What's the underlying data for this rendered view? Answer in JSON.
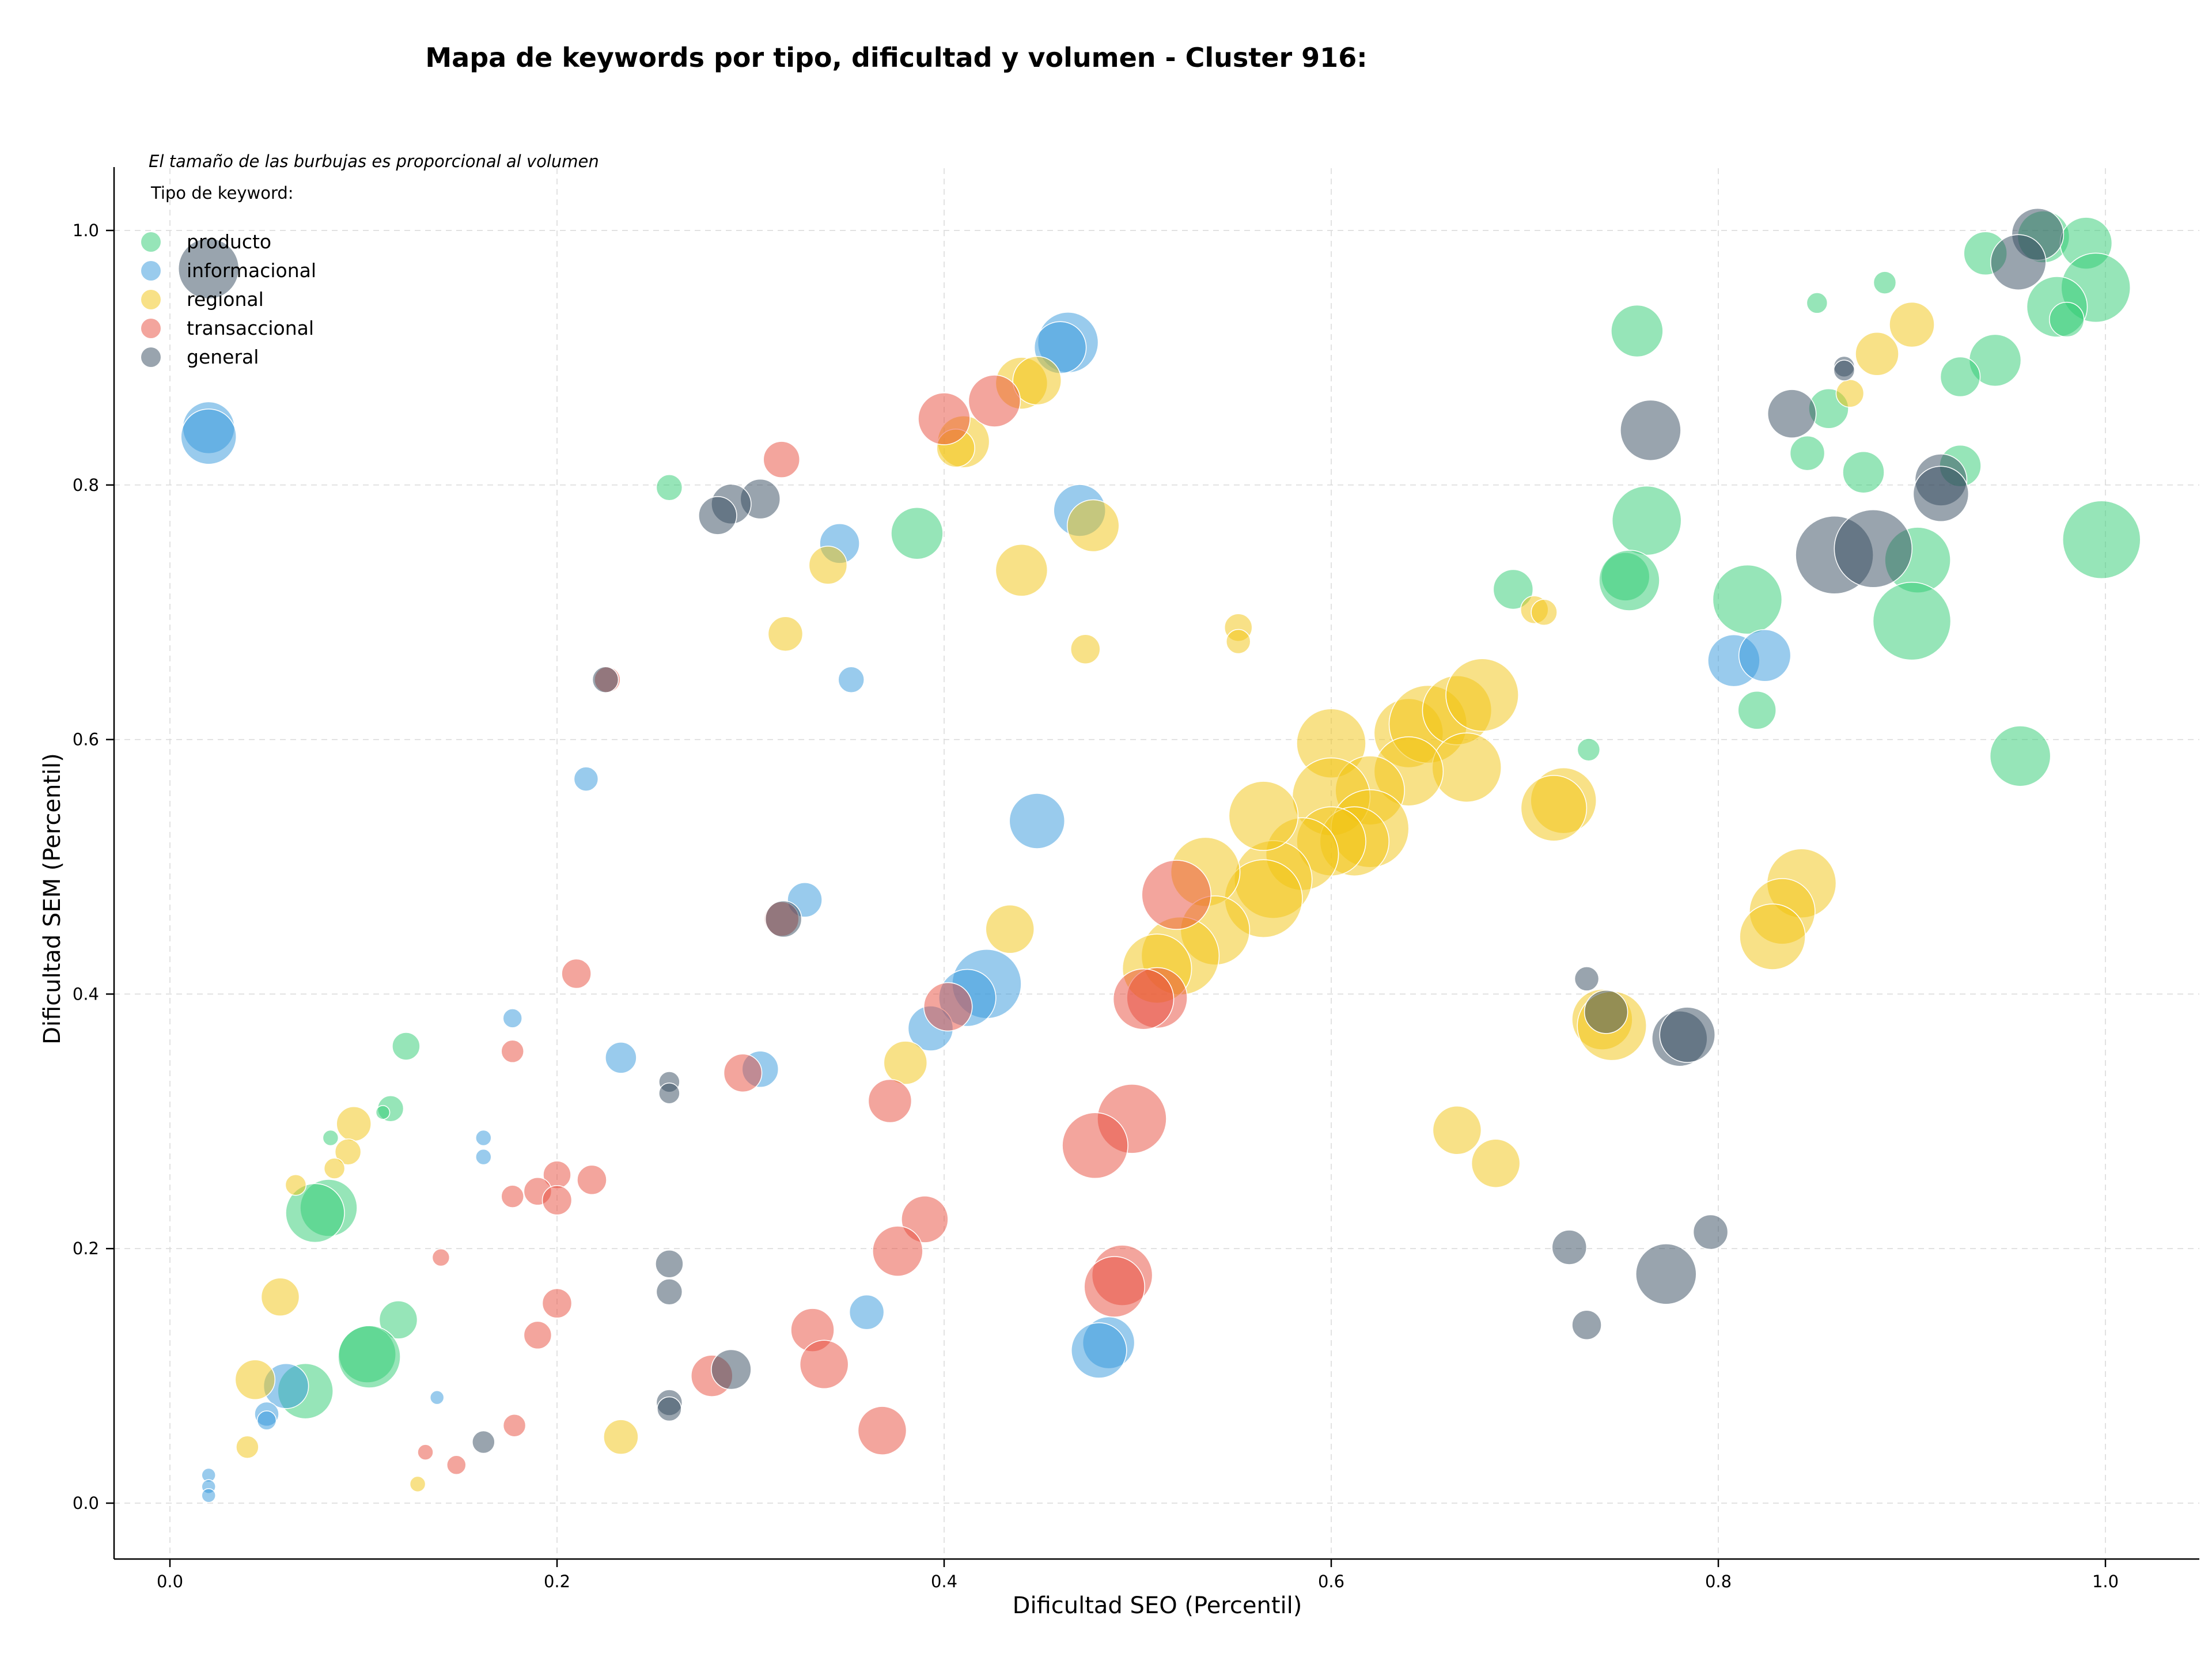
{
  "chart_data": {
    "type": "scatter",
    "title": "Mapa de keywords por tipo, dificultad y volumen - Cluster 916:",
    "xlabel": "Dificultad SEO (Percentil)",
    "ylabel": "Dificultad SEM (Percentil)",
    "xlim": [
      -0.03,
      1.05
    ],
    "ylim": [
      -0.04,
      1.05
    ],
    "xticks": [
      "0.0",
      "0.2",
      "0.4",
      "0.6",
      "0.8",
      "1.0"
    ],
    "yticks": [
      "0.0",
      "0.2",
      "0.4",
      "0.6",
      "0.8",
      "1.0"
    ],
    "grid": true,
    "legend_placement": "top-left",
    "note": "El tamaño de las burbujas es proporcional al volumen",
    "legend_title": "Tipo de keyword:",
    "colors": {
      "producto": "#2ecc71",
      "informacional": "#3498db",
      "regional": "#f1c40f",
      "transaccional": "#e74c3c",
      "general": "#34495e"
    },
    "series": [
      {
        "name": "producto",
        "points": [
          [
            0.258,
            0.798,
            1.5
          ],
          [
            0.386,
            0.762,
            3
          ],
          [
            0.758,
            0.921,
            3
          ],
          [
            0.851,
            0.943,
            1.2
          ],
          [
            0.886,
            0.959,
            1.3
          ],
          [
            0.938,
            0.982,
            2.5
          ],
          [
            0.968,
            0.995,
            3
          ],
          [
            0.99,
            0.99,
            3
          ],
          [
            0.995,
            0.955,
            4
          ],
          [
            0.975,
            0.94,
            3.5
          ],
          [
            0.98,
            0.93,
            2
          ],
          [
            0.943,
            0.898,
            3
          ],
          [
            0.925,
            0.885,
            2.3
          ],
          [
            0.857,
            0.86,
            2.3
          ],
          [
            0.846,
            0.825,
            2
          ],
          [
            0.875,
            0.81,
            2.4
          ],
          [
            0.925,
            0.815,
            2.4
          ],
          [
            0.763,
            0.772,
            4
          ],
          [
            0.903,
            0.741,
            3.8
          ],
          [
            0.752,
            0.728,
            2.8
          ],
          [
            0.754,
            0.725,
            3.5
          ],
          [
            0.694,
            0.718,
            2.3
          ],
          [
            0.815,
            0.71,
            4
          ],
          [
            0.998,
            0.757,
            4.5
          ],
          [
            0.9,
            0.693,
            4.5
          ],
          [
            0.82,
            0.623,
            2.2
          ],
          [
            0.956,
            0.587,
            3.5
          ],
          [
            0.733,
            0.592,
            1.3
          ],
          [
            0.122,
            0.359,
            1.6
          ],
          [
            0.114,
            0.31,
            1.5
          ],
          [
            0.11,
            0.307,
            0.8
          ],
          [
            0.083,
            0.287,
            0.9
          ],
          [
            0.082,
            0.232,
            3.3
          ],
          [
            0.075,
            0.228,
            3.4
          ],
          [
            0.118,
            0.144,
            2.2
          ],
          [
            0.102,
            0.117,
            3.3
          ],
          [
            0.103,
            0.115,
            3.6
          ],
          [
            0.07,
            0.088,
            3.2
          ]
        ]
      },
      {
        "name": "informacional",
        "points": [
          [
            0.02,
            0.845,
            3
          ],
          [
            0.02,
            0.838,
            3.2
          ],
          [
            0.464,
            0.912,
            3.5
          ],
          [
            0.46,
            0.908,
            3
          ],
          [
            0.47,
            0.78,
            3
          ],
          [
            0.346,
            0.754,
            2.3
          ],
          [
            0.352,
            0.647,
            1.5
          ],
          [
            0.215,
            0.569,
            1.4
          ],
          [
            0.448,
            0.536,
            3.2
          ],
          [
            0.328,
            0.474,
            2
          ],
          [
            0.422,
            0.408,
            4
          ],
          [
            0.412,
            0.397,
            3.3
          ],
          [
            0.393,
            0.373,
            2.6
          ],
          [
            0.305,
            0.341,
            2.1
          ],
          [
            0.233,
            0.35,
            1.8
          ],
          [
            0.177,
            0.381,
            1.1
          ],
          [
            0.162,
            0.287,
            0.9
          ],
          [
            0.162,
            0.272,
            0.9
          ],
          [
            0.808,
            0.662,
            3
          ],
          [
            0.824,
            0.666,
            3
          ],
          [
            0.36,
            0.15,
            2
          ],
          [
            0.485,
            0.126,
            3
          ],
          [
            0.48,
            0.12,
            3.2
          ],
          [
            0.06,
            0.092,
            2.6
          ],
          [
            0.05,
            0.07,
            1.4
          ],
          [
            0.05,
            0.065,
            1.1
          ],
          [
            0.138,
            0.083,
            0.8
          ],
          [
            0.02,
            0.022,
            0.8
          ],
          [
            0.02,
            0.013,
            0.6
          ],
          [
            0.02,
            0.006,
            0.7
          ]
        ]
      },
      {
        "name": "regional",
        "points": [
          [
            0.44,
            0.88,
            3
          ],
          [
            0.448,
            0.882,
            2.8
          ],
          [
            0.41,
            0.834,
            3
          ],
          [
            0.406,
            0.829,
            2.2
          ],
          [
            0.34,
            0.737,
            2.2
          ],
          [
            0.477,
            0.768,
            3
          ],
          [
            0.44,
            0.733,
            3
          ],
          [
            0.318,
            0.683,
            2
          ],
          [
            0.473,
            0.671,
            1.7
          ],
          [
            0.552,
            0.688,
            1.6
          ],
          [
            0.552,
            0.677,
            1.4
          ],
          [
            0.705,
            0.702,
            1.6
          ],
          [
            0.71,
            0.7,
            1.5
          ],
          [
            0.868,
            0.872,
            1.6
          ],
          [
            0.882,
            0.903,
            2.5
          ],
          [
            0.9,
            0.926,
            2.6
          ],
          [
            0.6,
            0.597,
            4
          ],
          [
            0.64,
            0.605,
            4
          ],
          [
            0.65,
            0.612,
            4.5
          ],
          [
            0.665,
            0.623,
            4
          ],
          [
            0.678,
            0.635,
            4.2
          ],
          [
            0.67,
            0.578,
            4
          ],
          [
            0.64,
            0.575,
            4
          ],
          [
            0.62,
            0.56,
            4
          ],
          [
            0.6,
            0.555,
            4.5
          ],
          [
            0.62,
            0.53,
            4.5
          ],
          [
            0.612,
            0.52,
            4
          ],
          [
            0.6,
            0.52,
            4
          ],
          [
            0.585,
            0.51,
            4.2
          ],
          [
            0.57,
            0.49,
            4.5
          ],
          [
            0.565,
            0.475,
            4.5
          ],
          [
            0.565,
            0.54,
            4
          ],
          [
            0.535,
            0.496,
            4
          ],
          [
            0.54,
            0.45,
            4
          ],
          [
            0.522,
            0.43,
            4.5
          ],
          [
            0.51,
            0.42,
            4
          ],
          [
            0.72,
            0.552,
            3.8
          ],
          [
            0.715,
            0.546,
            3.8
          ],
          [
            0.843,
            0.487,
            4
          ],
          [
            0.833,
            0.465,
            3.8
          ],
          [
            0.828,
            0.445,
            3.8
          ],
          [
            0.434,
            0.451,
            2.8
          ],
          [
            0.38,
            0.346,
            2.5
          ],
          [
            0.74,
            0.38,
            3.5
          ],
          [
            0.745,
            0.375,
            4
          ],
          [
            0.665,
            0.293,
            2.8
          ],
          [
            0.685,
            0.267,
            2.8
          ],
          [
            0.095,
            0.298,
            2
          ],
          [
            0.092,
            0.276,
            1.5
          ],
          [
            0.085,
            0.263,
            1.2
          ],
          [
            0.065,
            0.25,
            1.2
          ],
          [
            0.057,
            0.162,
            2.2
          ],
          [
            0.044,
            0.097,
            2.3
          ],
          [
            0.04,
            0.044,
            1.3
          ],
          [
            0.128,
            0.015,
            0.9
          ],
          [
            0.233,
            0.052,
            2
          ]
        ]
      },
      {
        "name": "transaccional",
        "points": [
          [
            0.4,
            0.852,
            3
          ],
          [
            0.426,
            0.866,
            3
          ],
          [
            0.316,
            0.82,
            2.1
          ],
          [
            0.226,
            0.647,
            1.5
          ],
          [
            0.316,
            0.459,
            2
          ],
          [
            0.52,
            0.478,
            4
          ],
          [
            0.51,
            0.397,
            3.5
          ],
          [
            0.503,
            0.396,
            3.5
          ],
          [
            0.402,
            0.39,
            2.8
          ],
          [
            0.21,
            0.416,
            1.7
          ],
          [
            0.177,
            0.355,
            1.3
          ],
          [
            0.296,
            0.338,
            2.2
          ],
          [
            0.372,
            0.316,
            2.5
          ],
          [
            0.497,
            0.302,
            4
          ],
          [
            0.478,
            0.281,
            3.8
          ],
          [
            0.2,
            0.258,
            1.6
          ],
          [
            0.218,
            0.254,
            1.7
          ],
          [
            0.19,
            0.245,
            1.6
          ],
          [
            0.177,
            0.241,
            1.3
          ],
          [
            0.2,
            0.238,
            1.7
          ],
          [
            0.14,
            0.193,
            1
          ],
          [
            0.39,
            0.223,
            2.7
          ],
          [
            0.376,
            0.198,
            2.9
          ],
          [
            0.492,
            0.179,
            3.5
          ],
          [
            0.488,
            0.17,
            3.5
          ],
          [
            0.2,
            0.157,
            1.7
          ],
          [
            0.19,
            0.132,
            1.6
          ],
          [
            0.332,
            0.136,
            2.5
          ],
          [
            0.338,
            0.109,
            2.8
          ],
          [
            0.28,
            0.1,
            2.4
          ],
          [
            0.368,
            0.057,
            2.8
          ],
          [
            0.178,
            0.061,
            1.3
          ],
          [
            0.132,
            0.04,
            0.9
          ],
          [
            0.148,
            0.03,
            1.1
          ]
        ]
      },
      {
        "name": "general",
        "points": [
          [
            0.02,
            0.97,
            3.5
          ],
          [
            0.965,
            0.997,
            3
          ],
          [
            0.955,
            0.975,
            3.2
          ],
          [
            0.865,
            0.893,
            1.2
          ],
          [
            0.865,
            0.89,
            1.2
          ],
          [
            0.838,
            0.856,
            2.8
          ],
          [
            0.765,
            0.843,
            3.5
          ],
          [
            0.915,
            0.804,
            3
          ],
          [
            0.915,
            0.793,
            3.2
          ],
          [
            0.86,
            0.745,
            4.5
          ],
          [
            0.88,
            0.75,
            4.5
          ],
          [
            0.305,
            0.789,
            2.3
          ],
          [
            0.29,
            0.785,
            2.3
          ],
          [
            0.283,
            0.776,
            2.2
          ],
          [
            0.225,
            0.647,
            1.5
          ],
          [
            0.258,
            0.331,
            1.2
          ],
          [
            0.258,
            0.322,
            1.2
          ],
          [
            0.317,
            0.459,
            2.1
          ],
          [
            0.732,
            0.412,
            1.4
          ],
          [
            0.742,
            0.386,
            2.5
          ],
          [
            0.78,
            0.365,
            3.2
          ],
          [
            0.784,
            0.368,
            3.2
          ],
          [
            0.796,
            0.213,
            2
          ],
          [
            0.773,
            0.18,
            3.5
          ],
          [
            0.723,
            0.201,
            2
          ],
          [
            0.732,
            0.14,
            1.7
          ],
          [
            0.258,
            0.188,
            1.6
          ],
          [
            0.258,
            0.166,
            1.5
          ],
          [
            0.29,
            0.105,
            2.3
          ],
          [
            0.258,
            0.079,
            1.5
          ],
          [
            0.258,
            0.074,
            1.4
          ],
          [
            0.162,
            0.048,
            1.3
          ]
        ]
      }
    ]
  }
}
